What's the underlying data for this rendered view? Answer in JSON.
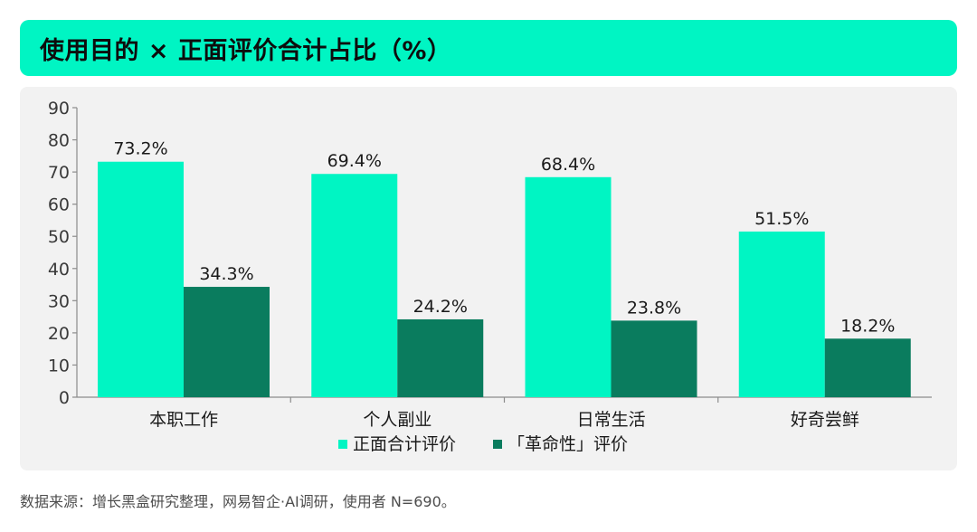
{
  "title": "使用目的 × 正面评价合计占比（%）",
  "source_note": "数据来源：增长黑盒研究整理，网易智企·AI调研，使用者 N=690。",
  "colors": {
    "title_bg": "#00F5C3",
    "positive": "#00F5C3",
    "revolutionary": "#0A7C5E"
  },
  "chart_data": {
    "type": "bar",
    "title": "使用目的 × 正面评价合计占比（%）",
    "xlabel": "",
    "ylabel": "",
    "categories": [
      "本职工作",
      "个人副业",
      "日常生活",
      "好奇尝鲜"
    ],
    "series": [
      {
        "name": "正面合计评价",
        "values": [
          73.2,
          69.4,
          68.4,
          51.5
        ],
        "labels": [
          "73.2%",
          "69.4%",
          "68.4%",
          "51.5%"
        ],
        "color": "#00F5C3"
      },
      {
        "name": "「革命性」评价",
        "values": [
          34.3,
          24.2,
          23.8,
          18.2
        ],
        "labels": [
          "34.3%",
          "24.2%",
          "23.8%",
          "18.2%"
        ],
        "color": "#0A7C5E"
      }
    ],
    "ylim": [
      0,
      90
    ],
    "yticks": [
      0,
      10,
      20,
      30,
      40,
      50,
      60,
      70,
      80,
      90
    ],
    "ytick_labels": [
      "0",
      "10",
      "20",
      "30",
      "40",
      "50",
      "60",
      "70",
      "80",
      "90"
    ],
    "grid": false,
    "legend_position": "bottom"
  }
}
